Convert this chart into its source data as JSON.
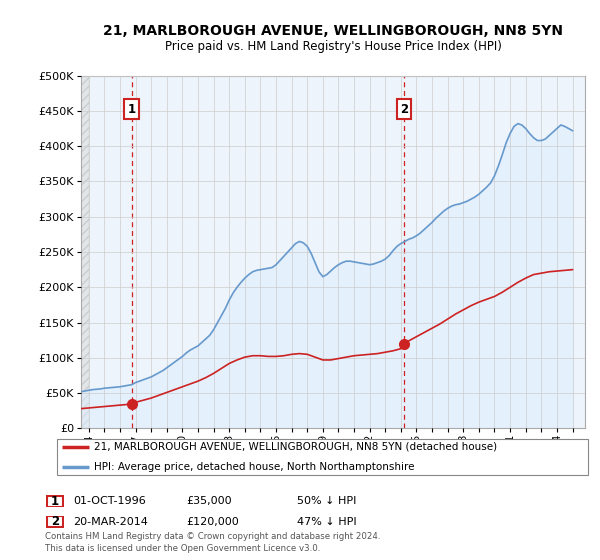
{
  "title_line1": "21, MARLBOROUGH AVENUE, WELLINGBOROUGH, NN8 5YN",
  "title_line2": "Price paid vs. HM Land Registry's House Price Index (HPI)",
  "ytick_values": [
    0,
    50000,
    100000,
    150000,
    200000,
    250000,
    300000,
    350000,
    400000,
    450000,
    500000
  ],
  "xlim_start": 1993.5,
  "xlim_end": 2025.8,
  "ylim_min": 0,
  "ylim_max": 500000,
  "sale1_year": 1996.75,
  "sale1_price": 35000,
  "sale1_label": "1",
  "sale1_date": "01-OCT-1996",
  "sale1_price_str": "£35,000",
  "sale1_hpi_pct": "50% ↓ HPI",
  "sale2_year": 2014.2,
  "sale2_price": 120000,
  "sale2_label": "2",
  "sale2_date": "20-MAR-2014",
  "sale2_price_str": "£120,000",
  "sale2_hpi_pct": "47% ↓ HPI",
  "red_line_color": "#cc2222",
  "blue_line_color": "#6699cc",
  "blue_fill_color": "#ddeeff",
  "dashed_line_color": "#cc2222",
  "grid_color": "#cccccc",
  "bg_color": "#ffffff",
  "chart_bg": "#eef4fb",
  "legend_label_red": "21, MARLBOROUGH AVENUE, WELLINGBOROUGH, NN8 5YN (detached house)",
  "legend_label_blue": "HPI: Average price, detached house, North Northamptonshire",
  "footer_text": "Contains HM Land Registry data © Crown copyright and database right 2024.\nThis data is licensed under the Open Government Licence v3.0.",
  "hpi_years": [
    1993.5,
    1994.0,
    1994.25,
    1994.5,
    1994.75,
    1995.0,
    1995.25,
    1995.5,
    1995.75,
    1996.0,
    1996.25,
    1996.5,
    1996.75,
    1997.0,
    1997.25,
    1997.5,
    1997.75,
    1998.0,
    1998.25,
    1998.5,
    1998.75,
    1999.0,
    1999.25,
    1999.5,
    1999.75,
    2000.0,
    2000.25,
    2000.5,
    2000.75,
    2001.0,
    2001.25,
    2001.5,
    2001.75,
    2002.0,
    2002.25,
    2002.5,
    2002.75,
    2003.0,
    2003.25,
    2003.5,
    2003.75,
    2004.0,
    2004.25,
    2004.5,
    2004.75,
    2005.0,
    2005.25,
    2005.5,
    2005.75,
    2006.0,
    2006.25,
    2006.5,
    2006.75,
    2007.0,
    2007.25,
    2007.5,
    2007.75,
    2008.0,
    2008.25,
    2008.5,
    2008.75,
    2009.0,
    2009.25,
    2009.5,
    2009.75,
    2010.0,
    2010.25,
    2010.5,
    2010.75,
    2011.0,
    2011.25,
    2011.5,
    2011.75,
    2012.0,
    2012.25,
    2012.5,
    2012.75,
    2013.0,
    2013.25,
    2013.5,
    2013.75,
    2014.0,
    2014.25,
    2014.5,
    2014.75,
    2015.0,
    2015.25,
    2015.5,
    2015.75,
    2016.0,
    2016.25,
    2016.5,
    2016.75,
    2017.0,
    2017.25,
    2017.5,
    2017.75,
    2018.0,
    2018.25,
    2018.5,
    2018.75,
    2019.0,
    2019.25,
    2019.5,
    2019.75,
    2020.0,
    2020.25,
    2020.5,
    2020.75,
    2021.0,
    2021.25,
    2021.5,
    2021.75,
    2022.0,
    2022.25,
    2022.5,
    2022.75,
    2023.0,
    2023.25,
    2023.5,
    2023.75,
    2024.0,
    2024.25,
    2024.5,
    2024.75,
    2025.0
  ],
  "hpi_values": [
    52000,
    54000,
    55000,
    55500,
    56000,
    57000,
    57500,
    58000,
    58500,
    59000,
    60000,
    61000,
    62000,
    65000,
    67000,
    69000,
    71000,
    73000,
    76000,
    79000,
    82000,
    86000,
    90000,
    94000,
    98000,
    102000,
    107000,
    111000,
    114000,
    117000,
    122000,
    127000,
    132000,
    140000,
    150000,
    160000,
    170000,
    182000,
    192000,
    200000,
    207000,
    213000,
    218000,
    222000,
    224000,
    225000,
    226000,
    227000,
    228000,
    232000,
    238000,
    244000,
    250000,
    256000,
    262000,
    265000,
    263000,
    258000,
    248000,
    235000,
    222000,
    215000,
    218000,
    223000,
    228000,
    232000,
    235000,
    237000,
    237000,
    236000,
    235000,
    234000,
    233000,
    232000,
    233000,
    235000,
    237000,
    240000,
    245000,
    252000,
    258000,
    262000,
    265000,
    268000,
    270000,
    273000,
    277000,
    282000,
    287000,
    292000,
    298000,
    303000,
    308000,
    312000,
    315000,
    317000,
    318000,
    320000,
    322000,
    325000,
    328000,
    332000,
    337000,
    342000,
    348000,
    358000,
    372000,
    388000,
    405000,
    418000,
    428000,
    432000,
    430000,
    425000,
    418000,
    412000,
    408000,
    408000,
    410000,
    415000,
    420000,
    425000,
    430000,
    428000,
    425000,
    422000
  ],
  "sale_years": [
    1993.5,
    1994.0,
    1994.5,
    1995.0,
    1995.5,
    1996.0,
    1996.5,
    1996.75,
    1997.0,
    1997.5,
    1998.0,
    1998.5,
    1999.0,
    1999.5,
    2000.0,
    2000.5,
    2001.0,
    2001.5,
    2002.0,
    2002.5,
    2003.0,
    2003.5,
    2004.0,
    2004.5,
    2005.0,
    2005.5,
    2006.0,
    2006.5,
    2007.0,
    2007.5,
    2008.0,
    2008.5,
    2009.0,
    2009.5,
    2010.0,
    2010.5,
    2011.0,
    2011.5,
    2012.0,
    2012.5,
    2013.0,
    2013.5,
    2014.0,
    2014.2,
    2014.5,
    2015.0,
    2015.5,
    2016.0,
    2016.5,
    2017.0,
    2017.5,
    2018.0,
    2018.5,
    2019.0,
    2019.5,
    2020.0,
    2020.5,
    2021.0,
    2021.5,
    2022.0,
    2022.5,
    2023.0,
    2023.5,
    2024.0,
    2024.5,
    2025.0
  ],
  "sale_values": [
    28000,
    29000,
    30000,
    31000,
    32000,
    33000,
    34000,
    35000,
    37000,
    40000,
    43000,
    47000,
    51000,
    55000,
    59000,
    63000,
    67000,
    72000,
    78000,
    85000,
    92000,
    97000,
    101000,
    103000,
    103000,
    102000,
    102000,
    103000,
    105000,
    106000,
    105000,
    101000,
    97000,
    97000,
    99000,
    101000,
    103000,
    104000,
    105000,
    106000,
    108000,
    110000,
    113000,
    120000,
    124000,
    130000,
    136000,
    142000,
    148000,
    155000,
    162000,
    168000,
    174000,
    179000,
    183000,
    187000,
    193000,
    200000,
    207000,
    213000,
    218000,
    220000,
    222000,
    223000,
    224000,
    225000
  ]
}
